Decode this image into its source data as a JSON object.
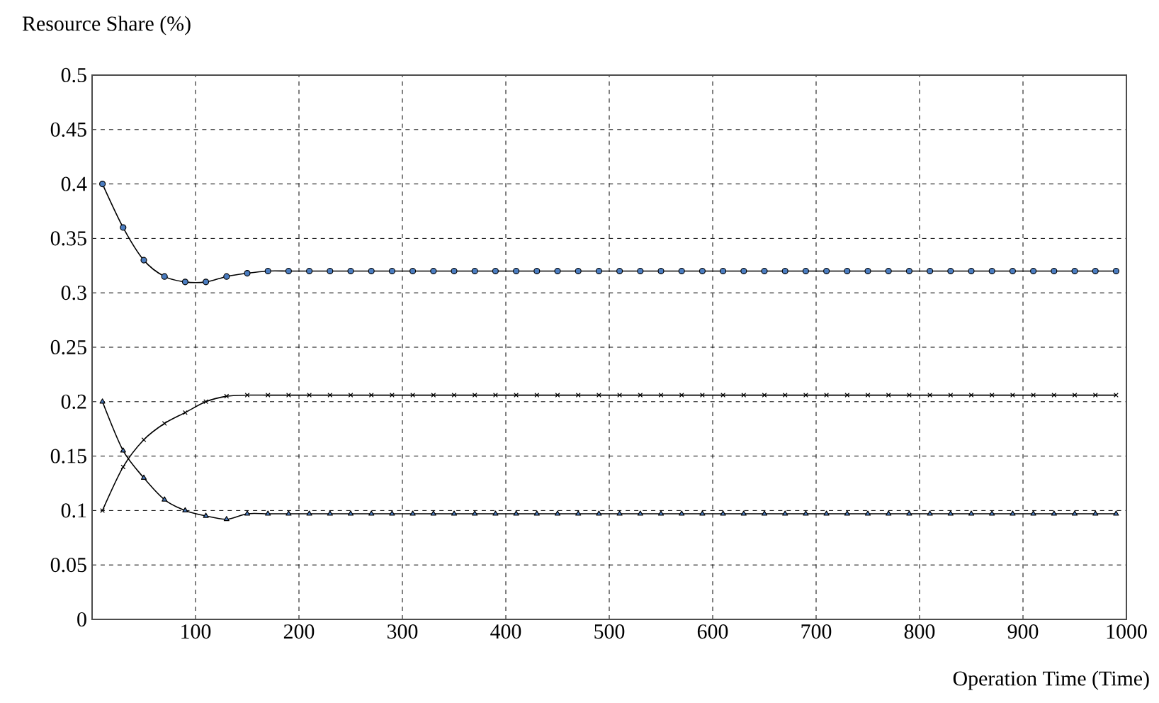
{
  "chart_data": {
    "type": "line",
    "xlabel": "Operation Time (Time)",
    "ylabel": "Resource Share (%)",
    "x": [
      10,
      30,
      50,
      70,
      90,
      110,
      130,
      150,
      170,
      190,
      210,
      230,
      250,
      270,
      290,
      310,
      330,
      350,
      370,
      390,
      410,
      430,
      450,
      470,
      490,
      510,
      530,
      550,
      570,
      590,
      610,
      630,
      650,
      670,
      690,
      710,
      730,
      750,
      770,
      790,
      810,
      830,
      850,
      870,
      890,
      910,
      930,
      950,
      970,
      990
    ],
    "series": [
      {
        "color": "#4a7cc0",
        "marker": "circle",
        "values": [
          0.4,
          0.36,
          0.33,
          0.315,
          0.31,
          0.31,
          0.315,
          0.318,
          0.32,
          0.32,
          0.32,
          0.32,
          0.32,
          0.32,
          0.32,
          0.32,
          0.32,
          0.32,
          0.32,
          0.32,
          0.32,
          0.32,
          0.32,
          0.32,
          0.32,
          0.32,
          0.32,
          0.32,
          0.32,
          0.32,
          0.32,
          0.32,
          0.32,
          0.32,
          0.32,
          0.32,
          0.32,
          0.32,
          0.32,
          0.32,
          0.32,
          0.32,
          0.32,
          0.32,
          0.32,
          0.32,
          0.32,
          0.32,
          0.32,
          0.32
        ]
      },
      {
        "color": "#000000",
        "marker": "cross",
        "values": [
          0.1,
          0.14,
          0.165,
          0.18,
          0.19,
          0.2,
          0.205,
          0.206,
          0.206,
          0.206,
          0.206,
          0.206,
          0.206,
          0.206,
          0.206,
          0.206,
          0.206,
          0.206,
          0.206,
          0.206,
          0.206,
          0.206,
          0.206,
          0.206,
          0.206,
          0.206,
          0.206,
          0.206,
          0.206,
          0.206,
          0.206,
          0.206,
          0.206,
          0.206,
          0.206,
          0.206,
          0.206,
          0.206,
          0.206,
          0.206,
          0.206,
          0.206,
          0.206,
          0.206,
          0.206,
          0.206,
          0.206,
          0.206,
          0.206,
          0.206
        ]
      },
      {
        "color": "#4a7cc0",
        "marker": "triangle",
        "values": [
          0.2,
          0.155,
          0.13,
          0.11,
          0.1,
          0.095,
          0.092,
          0.097,
          0.097,
          0.097,
          0.097,
          0.097,
          0.097,
          0.097,
          0.097,
          0.097,
          0.097,
          0.097,
          0.097,
          0.097,
          0.097,
          0.097,
          0.097,
          0.097,
          0.097,
          0.097,
          0.097,
          0.097,
          0.097,
          0.097,
          0.097,
          0.097,
          0.097,
          0.097,
          0.097,
          0.097,
          0.097,
          0.097,
          0.097,
          0.097,
          0.097,
          0.097,
          0.097,
          0.097,
          0.097,
          0.097,
          0.097,
          0.097,
          0.097,
          0.097
        ]
      }
    ],
    "xlim": [
      0,
      1000
    ],
    "xticks": [
      100,
      200,
      300,
      400,
      500,
      600,
      700,
      800,
      900,
      1000
    ],
    "ylim": [
      0,
      0.5
    ],
    "yticks": [
      0,
      0.05,
      0.1,
      0.15,
      0.2,
      0.25,
      0.3,
      0.35,
      0.4,
      0.45,
      0.5
    ],
    "grid": true,
    "line_style": "solid"
  }
}
